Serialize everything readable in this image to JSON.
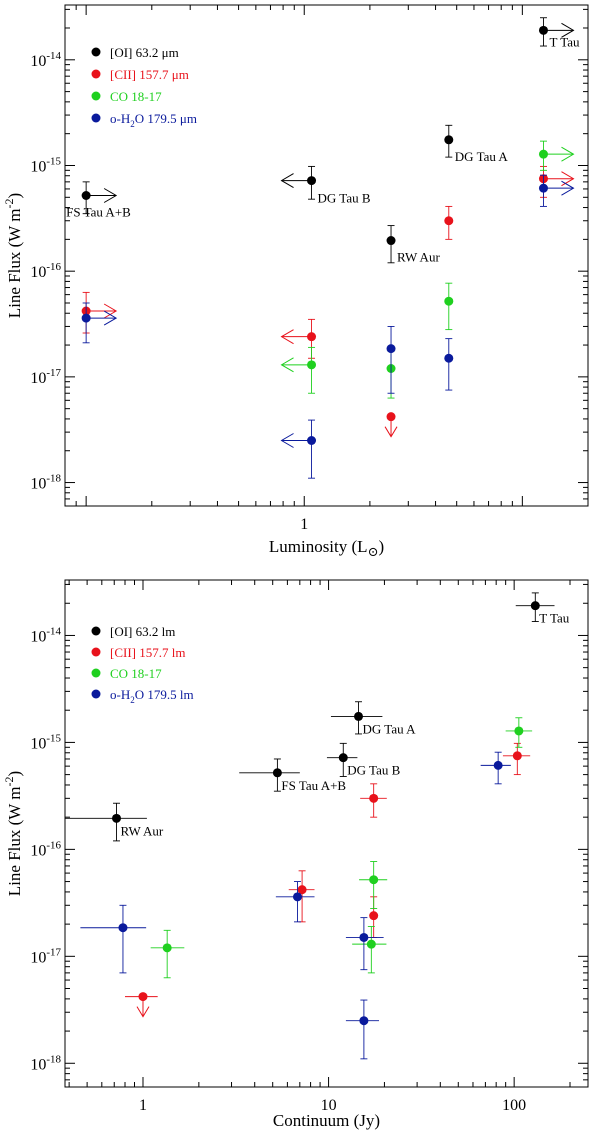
{
  "colors": {
    "OI": "#000000",
    "CII": "#e8121b",
    "CO": "#1fd01f",
    "H2O": "#0a1a9c"
  },
  "chart_data": [
    {
      "type": "scatter",
      "name": "luminosity-panel",
      "xlabel": "Luminosity (L",
      "xlabel_symbol": "⊙",
      "ylabel": "Line Flux (W m",
      "ylabel_sup": "-2",
      "ylabel_end": ")",
      "xscale": "log",
      "yscale": "log",
      "xlim": [
        0.08,
        20
      ],
      "ylim": [
        6e-19,
        3.3e-14
      ],
      "x_tick_labels": [
        {
          "value": 1,
          "label": "1"
        }
      ],
      "y_tick_labels": [
        {
          "exp": -14,
          "base": "10",
          "sup": "-14"
        },
        {
          "exp": -15,
          "base": "10",
          "sup": "-15"
        },
        {
          "exp": -16,
          "base": "10",
          "sup": "-16"
        },
        {
          "exp": -17,
          "base": "10",
          "sup": "-17"
        },
        {
          "exp": -18,
          "base": "10",
          "sup": "-18"
        }
      ],
      "legend": [
        {
          "key": "OI",
          "label": "[OI] 63.2 μm"
        },
        {
          "key": "CII",
          "label": "[CII] 157.7 μm"
        },
        {
          "key": "CO",
          "label": "CO 18-17"
        },
        {
          "key": "H2O",
          "label_pre": "o-H",
          "label_sub": "2",
          "label_post": "O 179.5 μm"
        }
      ],
      "sources": [
        {
          "label": "FS Tau A+B",
          "x": 0.1,
          "label_pos": "below"
        },
        {
          "label": "DG Tau B",
          "x": 1.08,
          "label_pos": "right"
        },
        {
          "label": "RW Aur",
          "x": 2.5,
          "label_pos": "below"
        },
        {
          "label": "DG Tau A",
          "x": 4.6,
          "label_pos": "below"
        },
        {
          "label": "T Tau",
          "x": 12.5,
          "label_pos": "below"
        }
      ],
      "series": [
        {
          "name": "[OI] 63.2 μm",
          "key": "OI",
          "points": [
            {
              "x": 0.1,
              "y": 5.2e-16,
              "ylo": 3.5e-16,
              "yhi": 7e-16,
              "arrow": "right"
            },
            {
              "x": 1.08,
              "y": 7.2e-16,
              "ylo": 4.8e-16,
              "yhi": 9.8e-16,
              "arrow": "left"
            },
            {
              "x": 2.5,
              "y": 1.95e-16,
              "ylo": 1.2e-16,
              "yhi": 2.7e-16
            },
            {
              "x": 4.6,
              "y": 1.75e-15,
              "ylo": 1.2e-15,
              "yhi": 2.4e-15
            },
            {
              "x": 12.5,
              "y": 1.9e-14,
              "ylo": 1.35e-14,
              "yhi": 2.5e-14,
              "arrow": "right"
            }
          ]
        },
        {
          "name": "[CII] 157.7 μm",
          "key": "CII",
          "points": [
            {
              "x": 0.1,
              "y": 4.2e-17,
              "ylo": 2.6e-17,
              "yhi": 6.3e-17,
              "arrow": "right"
            },
            {
              "x": 1.08,
              "y": 2.4e-17,
              "ylo": 1.5e-17,
              "yhi": 3.5e-17,
              "arrow": "left"
            },
            {
              "x": 2.5,
              "y": 4.2e-18,
              "upper_limit": true
            },
            {
              "x": 4.6,
              "y": 3e-16,
              "ylo": 2e-16,
              "yhi": 4.1e-16
            },
            {
              "x": 12.5,
              "y": 7.5e-16,
              "ylo": 5e-16,
              "yhi": 9.8e-16,
              "arrow": "right"
            }
          ]
        },
        {
          "name": "CO 18-17",
          "key": "CO",
          "points": [
            {
              "x": 1.08,
              "y": 1.3e-17,
              "ylo": 7e-18,
              "yhi": 1.9e-17,
              "arrow": "left"
            },
            {
              "x": 2.5,
              "y": 1.2e-17,
              "ylo": 6.3e-18,
              "yhi": 1.75e-17
            },
            {
              "x": 4.6,
              "y": 5.2e-17,
              "ylo": 2.8e-17,
              "yhi": 7.7e-17
            },
            {
              "x": 12.5,
              "y": 1.28e-15,
              "ylo": 9e-16,
              "yhi": 1.7e-15,
              "arrow": "right"
            }
          ]
        },
        {
          "name": "o-H2O 179.5 μm",
          "key": "H2O",
          "points": [
            {
              "x": 0.1,
              "y": 3.6e-17,
              "ylo": 2.1e-17,
              "yhi": 5e-17,
              "arrow": "right"
            },
            {
              "x": 1.08,
              "y": 2.5e-18,
              "ylo": 1.1e-18,
              "yhi": 3.9e-18,
              "arrow": "left"
            },
            {
              "x": 2.5,
              "y": 1.85e-17,
              "ylo": 7e-18,
              "yhi": 3e-17
            },
            {
              "x": 4.6,
              "y": 1.5e-17,
              "ylo": 7.5e-18,
              "yhi": 2.3e-17
            },
            {
              "x": 12.5,
              "y": 6.1e-16,
              "ylo": 4.1e-16,
              "yhi": 8.1e-16,
              "arrow": "right"
            }
          ]
        }
      ]
    },
    {
      "type": "scatter",
      "name": "continuum-panel",
      "xlabel": "Continuum (Jy)",
      "ylabel": "Line Flux (W m",
      "ylabel_sup": "-2",
      "ylabel_end": ")",
      "xscale": "log",
      "yscale": "log",
      "xlim": [
        0.38,
        250
      ],
      "ylim": [
        6e-19,
        3.3e-14
      ],
      "x_tick_labels": [
        {
          "value": 1,
          "label": "1"
        },
        {
          "value": 10,
          "label": "10"
        },
        {
          "value": 100,
          "label": "100"
        }
      ],
      "y_tick_labels": [
        {
          "exp": -14,
          "base": "10",
          "sup": "-14"
        },
        {
          "exp": -15,
          "base": "10",
          "sup": "-15"
        },
        {
          "exp": -16,
          "base": "10",
          "sup": "-16"
        },
        {
          "exp": -17,
          "base": "10",
          "sup": "-17"
        },
        {
          "exp": -18,
          "base": "10",
          "sup": "-18"
        }
      ],
      "legend": [
        {
          "key": "OI",
          "label": "[OI] 63.2 lm"
        },
        {
          "key": "CII",
          "label": "[CII] 157.7 lm"
        },
        {
          "key": "CO",
          "label": "CO 18-17"
        },
        {
          "key": "H2O",
          "label_pre": "o-H",
          "label_sub": "2",
          "label_post": "O 179.5 lm"
        }
      ],
      "sources": [
        {
          "label": "RW Aur",
          "x": 0.72,
          "y": 1.95e-16,
          "label_pos": "below"
        },
        {
          "label": "FS Tau A+B",
          "x": 5.3,
          "y": 5.2e-16,
          "label_pos": "below"
        },
        {
          "label": "DG Tau B",
          "x": 12,
          "y": 7.2e-16,
          "label_pos": "below"
        },
        {
          "label": "DG Tau A",
          "x": 14.5,
          "y": 1.75e-15,
          "label_pos": "below"
        },
        {
          "label": "T Tau",
          "x": 130,
          "y": 1.9e-14,
          "label_pos": "below"
        }
      ],
      "series": [
        {
          "name": "[OI] 63.2 lm",
          "key": "OI",
          "points": [
            {
              "x": 0.72,
              "y": 1.95e-16,
              "xlo": 0.3,
              "xhi": 1.05,
              "ylo": 1.2e-16,
              "yhi": 2.7e-16
            },
            {
              "x": 5.3,
              "y": 5.2e-16,
              "xlo": 3.3,
              "xhi": 7.0,
              "ylo": 3.5e-16,
              "yhi": 7e-16
            },
            {
              "x": 12,
              "y": 7.2e-16,
              "xlo": 9.8,
              "xhi": 14.3,
              "ylo": 4.8e-16,
              "yhi": 9.8e-16
            },
            {
              "x": 14.5,
              "y": 1.75e-15,
              "xlo": 10.3,
              "xhi": 19.5,
              "ylo": 1.2e-15,
              "yhi": 2.4e-15
            },
            {
              "x": 130,
              "y": 1.9e-14,
              "xlo": 102,
              "xhi": 165,
              "ylo": 1.35e-14,
              "yhi": 2.5e-14
            }
          ]
        },
        {
          "name": "[CII] 157.7 lm",
          "key": "CII",
          "points": [
            {
              "x": 1.0,
              "y": 4.2e-18,
              "xlo": 0.8,
              "xhi": 1.2,
              "upper_limit": true
            },
            {
              "x": 7.2,
              "y": 4.2e-17,
              "xlo": 6.1,
              "xhi": 8.4,
              "ylo": 2.1e-17,
              "yhi": 6.3e-17
            },
            {
              "x": 17.5,
              "y": 2.4e-17,
              "ylo": 1.5e-17,
              "yhi": 3.6e-17
            },
            {
              "x": 17.5,
              "y": 3e-16,
              "xlo": 14.8,
              "xhi": 20.6,
              "ylo": 2e-16,
              "yhi": 4.1e-16
            },
            {
              "x": 104,
              "y": 7.5e-16,
              "xlo": 87,
              "xhi": 122,
              "ylo": 5e-16,
              "yhi": 9.8e-16
            }
          ]
        },
        {
          "name": "CO 18-17",
          "key": "CO",
          "points": [
            {
              "x": 1.35,
              "y": 1.2e-17,
              "xlo": 1.1,
              "xhi": 1.67,
              "ylo": 6.3e-18,
              "yhi": 1.75e-17
            },
            {
              "x": 17,
              "y": 1.3e-17,
              "xlo": 13.4,
              "xhi": 20.5,
              "ylo": 7e-18,
              "yhi": 1.9e-17
            },
            {
              "x": 17.5,
              "y": 5.2e-17,
              "xlo": 14.6,
              "xhi": 20.7,
              "ylo": 2.8e-17,
              "yhi": 7.7e-17
            },
            {
              "x": 106,
              "y": 1.28e-15,
              "xlo": 90,
              "xhi": 125,
              "ylo": 9e-16,
              "yhi": 1.7e-15
            }
          ]
        },
        {
          "name": "o-H2O 179.5 lm",
          "key": "H2O",
          "points": [
            {
              "x": 0.78,
              "y": 1.85e-17,
              "xlo": 0.46,
              "xhi": 1.04,
              "ylo": 7e-18,
              "yhi": 3e-17
            },
            {
              "x": 6.8,
              "y": 3.6e-17,
              "xlo": 5.2,
              "xhi": 8.4,
              "ylo": 2.1e-17,
              "yhi": 5e-17
            },
            {
              "x": 15.5,
              "y": 1.5e-17,
              "xlo": 12.4,
              "xhi": 19.8,
              "ylo": 7.5e-18,
              "yhi": 2.3e-17
            },
            {
              "x": 15.5,
              "y": 2.5e-18,
              "xlo": 12.4,
              "xhi": 18.7,
              "ylo": 1.1e-18,
              "yhi": 3.9e-18
            },
            {
              "x": 82,
              "y": 6.1e-16,
              "xlo": 66,
              "xhi": 96,
              "ylo": 4.1e-16,
              "yhi": 8.1e-16
            }
          ]
        }
      ]
    }
  ]
}
